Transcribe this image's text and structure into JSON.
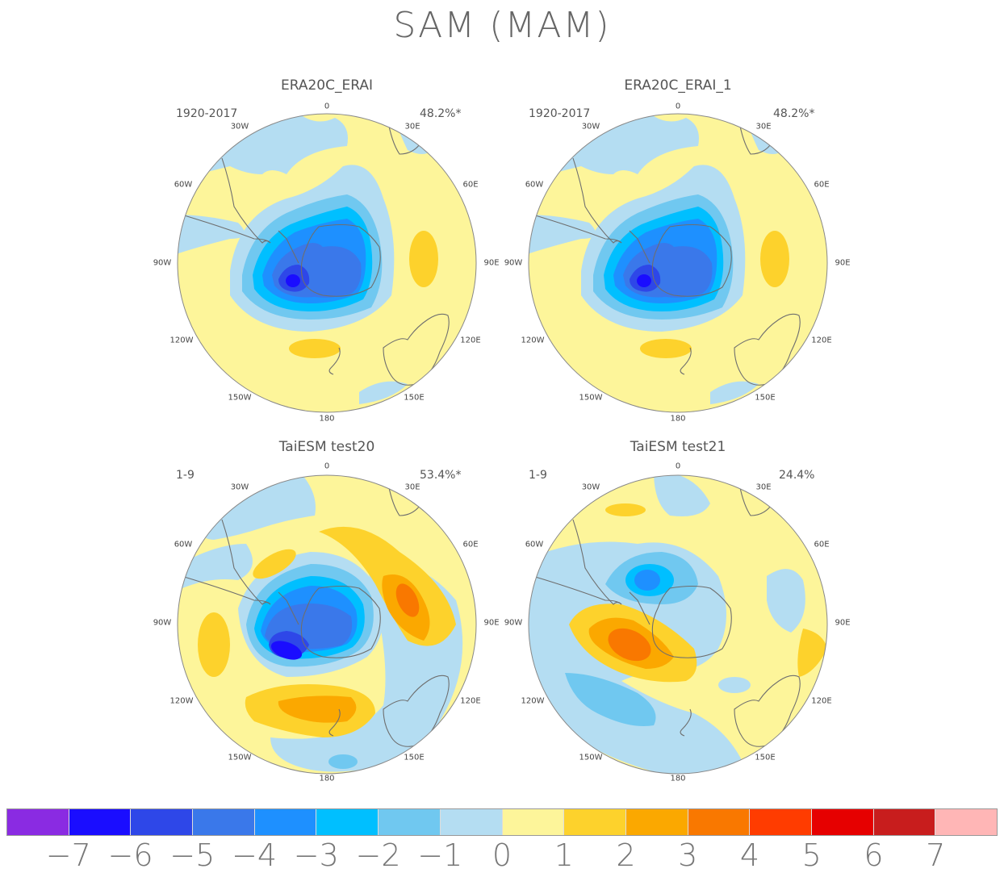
{
  "title": "SAM (MAM)",
  "colors": {
    "-7": "#8a2be2",
    "-6": "#1a0dff",
    "-5": "#2e47e8",
    "-4": "#3a78ea",
    "-3": "#1e90ff",
    "-2": "#00bfff",
    "-1": "#70c8f0",
    "0n": "#b4ddf2",
    "0p": "#fdf59a",
    "1": "#fdd22c",
    "2": "#fba800",
    "3": "#f97800",
    "4": "#ff3c00",
    "5": "#e60000",
    "6": "#c81d1d",
    "7": "#ffb6b6",
    "coast": "#6e6e6e"
  },
  "panels": [
    {
      "title": "ERA20C_ERAI",
      "period": "1920-2017",
      "pct": "48.2%*"
    },
    {
      "title": "ERA20C_ERAI_1",
      "period": "1920-2017",
      "pct": "48.2%*"
    },
    {
      "title": "TaiESM test20",
      "period": "1-9",
      "pct": "53.4%*"
    },
    {
      "title": "TaiESM test21",
      "period": "1-9",
      "pct": "24.4%"
    }
  ],
  "lon_labels": [
    "0",
    "30E",
    "60E",
    "90E",
    "120E",
    "150E",
    "180",
    "150W",
    "120W",
    "90W",
    "60W",
    "30W"
  ],
  "colorbar": {
    "swatches": [
      "#8a2be2",
      "#1a0dff",
      "#2e47e8",
      "#3a78ea",
      "#1e90ff",
      "#00bfff",
      "#70c8f0",
      "#b4ddf2",
      "#fdf59a",
      "#fdd22c",
      "#fba800",
      "#f97800",
      "#ff3c00",
      "#e60000",
      "#c81d1d",
      "#ffb6b6"
    ],
    "labels": [
      "-7",
      "-6",
      "-5",
      "-4",
      "-3",
      "-2",
      "-1",
      "0",
      "1",
      "2",
      "3",
      "4",
      "5",
      "6",
      "7"
    ]
  }
}
